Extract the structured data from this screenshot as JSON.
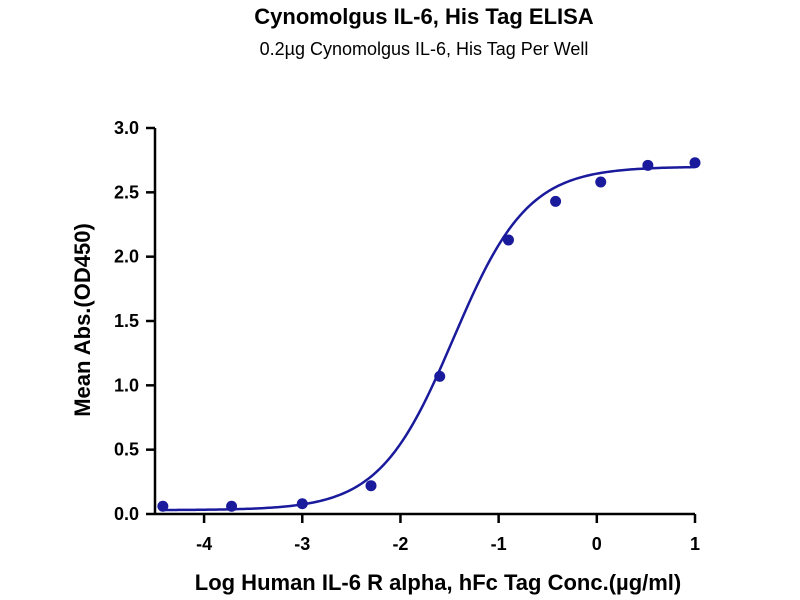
{
  "chart_data": {
    "type": "scatter",
    "title": "Cynomolgus IL-6, His Tag ELISA",
    "subtitle": "0.2µg Cynomolgus IL-6, His Tag Per Well",
    "xlabel": "Log Human IL-6 R alpha, hFc Tag Conc.(µg/ml)",
    "ylabel": "Mean Abs.(OD450)",
    "xlim": [
      -4.5,
      1
    ],
    "ylim": [
      0,
      3
    ],
    "xticks": [
      "-4",
      "-3",
      "-2",
      "-1",
      "0",
      "1"
    ],
    "yticks": [
      "0.0",
      "0.5",
      "1.0",
      "1.5",
      "2.0",
      "2.5",
      "3.0"
    ],
    "grid": false,
    "series": [
      {
        "x": [
          -4.42,
          -3.72,
          -3.0,
          -2.3,
          -1.6,
          -0.9,
          -0.42,
          0.04,
          0.52,
          1.0
        ],
        "y": [
          0.06,
          0.06,
          0.08,
          0.22,
          1.07,
          2.13,
          2.43,
          2.58,
          2.71,
          2.73
        ]
      }
    ],
    "fit_curve": {
      "bottom": 0.03,
      "top": 2.7,
      "logEC50": -1.46,
      "hill": 1.15
    },
    "colors": {
      "series": "#1a1a9c",
      "axis": "#000000"
    }
  }
}
